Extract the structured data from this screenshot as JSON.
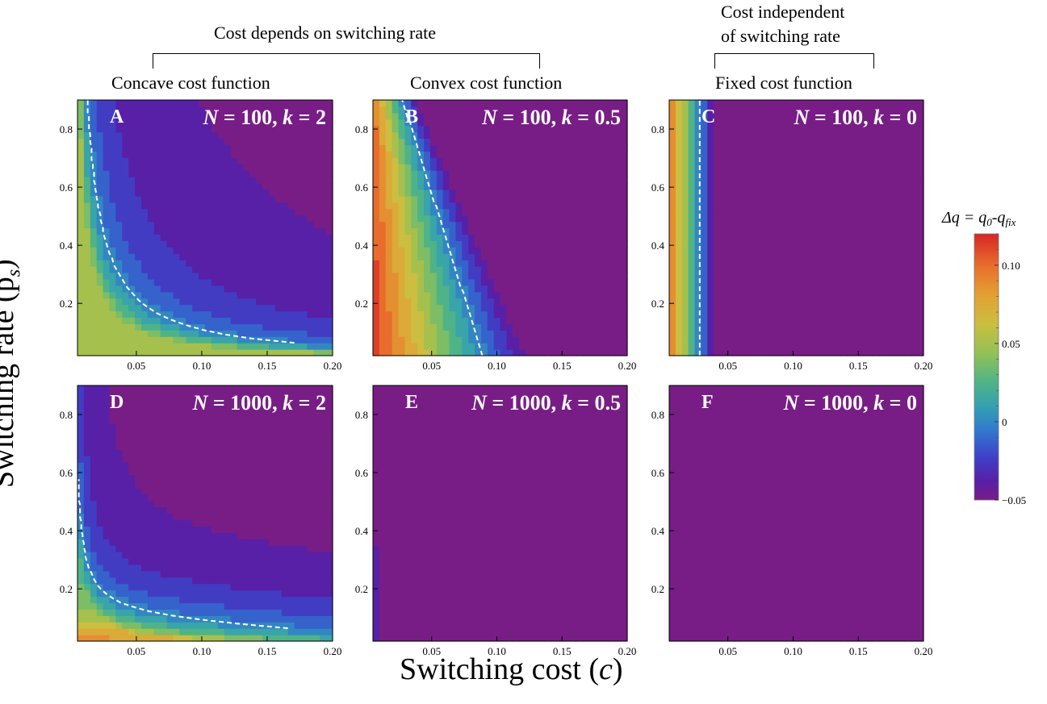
{
  "headers": {
    "depends": "Cost depends on switching rate",
    "independent_line1": "Cost independent",
    "independent_line2": "of switching rate"
  },
  "column_titles": [
    "Concave cost function",
    "Convex cost function",
    "Fixed cost function"
  ],
  "axes": {
    "xlabel_text": "Switching cost (",
    "xlabel_var": "c",
    "xlabel_close": ")",
    "ylabel": "Switching rate (p",
    "ylabel_sub": "s",
    "ylabel_close": ")"
  },
  "colorbar": {
    "title": "Δq = q₀-q_fix",
    "title_main": "Δq = q",
    "title_sub0": "0",
    "title_mid": "-q",
    "title_subfix": "fix",
    "ticks": [
      {
        "label": "0.10",
        "value": 0.1
      },
      {
        "label": "0.05",
        "value": 0.05
      },
      {
        "label": "0",
        "value": 0.0
      },
      {
        "label": "−0.05",
        "value": -0.05
      }
    ],
    "range": [
      -0.05,
      0.12
    ]
  },
  "chart_data": [
    {
      "type": "heatmap",
      "letter": "A",
      "title": "N = 100, k = 2",
      "N": "100",
      "k": "2",
      "xlim": [
        0.005,
        0.2
      ],
      "ylim": [
        0.02,
        0.9
      ],
      "x_ticks": [
        "0.05",
        "0.10",
        "0.15",
        "0.20"
      ],
      "y_ticks": [
        "0.2",
        "0.4",
        "0.6",
        "0.8"
      ],
      "shape": "concave",
      "params": {
        "scale": 0.0055,
        "base": -0.05,
        "offset": 0.045
      },
      "dashed_zero_contour": true
    },
    {
      "type": "heatmap",
      "letter": "B",
      "title": "N = 100, k = 0.5",
      "N": "100",
      "k": "0.5",
      "xlim": [
        0.005,
        0.2
      ],
      "ylim": [
        0.02,
        0.9
      ],
      "x_ticks": [
        "0.05",
        "0.10",
        "0.15",
        "0.20"
      ],
      "y_ticks": [
        "0.2",
        "0.4",
        "0.6",
        "0.8"
      ],
      "shape": "convex",
      "params": {
        "c0": 0.05
      },
      "dashed_zero_contour": true
    },
    {
      "type": "heatmap",
      "letter": "C",
      "title": "N = 100, k = 0",
      "N": "100",
      "k": "0",
      "xlim": [
        0.005,
        0.2
      ],
      "ylim": [
        0.02,
        0.9
      ],
      "x_ticks": [
        "0.05",
        "0.10",
        "0.15",
        "0.20"
      ],
      "y_ticks": [
        "0.2",
        "0.4",
        "0.6",
        "0.8"
      ],
      "shape": "fixed",
      "params": {
        "c0": 0.02
      },
      "dashed_zero_contour": true
    },
    {
      "type": "heatmap",
      "letter": "D",
      "title": "N = 1000, k = 2",
      "N": "1000",
      "k": "2",
      "xlim": [
        0.005,
        0.2
      ],
      "ylim": [
        0.02,
        0.9
      ],
      "x_ticks": [
        "0.05",
        "0.10",
        "0.15",
        "0.20"
      ],
      "y_ticks": [
        "0.2",
        "0.4",
        "0.6",
        "0.8"
      ],
      "shape": "concave",
      "params": {
        "scale": 0.0023,
        "base": -0.05,
        "offset": 0.065
      },
      "dashed_zero_contour": true
    },
    {
      "type": "heatmap",
      "letter": "E",
      "title": "N = 1000, k = 0.5",
      "N": "1000",
      "k": "0.5",
      "xlim": [
        0.005,
        0.2
      ],
      "ylim": [
        0.02,
        0.9
      ],
      "x_ticks": [
        "0.05",
        "0.10",
        "0.15",
        "0.20"
      ],
      "y_ticks": [
        "0.2",
        "0.4",
        "0.6",
        "0.8"
      ],
      "shape": "flat-convex",
      "params": {},
      "dashed_zero_contour": false
    },
    {
      "type": "heatmap",
      "letter": "F",
      "title": "N = 1000, k = 0",
      "N": "1000",
      "k": "0",
      "xlim": [
        0.005,
        0.2
      ],
      "ylim": [
        0.02,
        0.9
      ],
      "x_ticks": [
        "0.05",
        "0.10",
        "0.15",
        "0.20"
      ],
      "y_ticks": [
        "0.2",
        "0.4",
        "0.6",
        "0.8"
      ],
      "shape": "flat-fixed",
      "params": {},
      "dashed_zero_contour": false
    }
  ]
}
